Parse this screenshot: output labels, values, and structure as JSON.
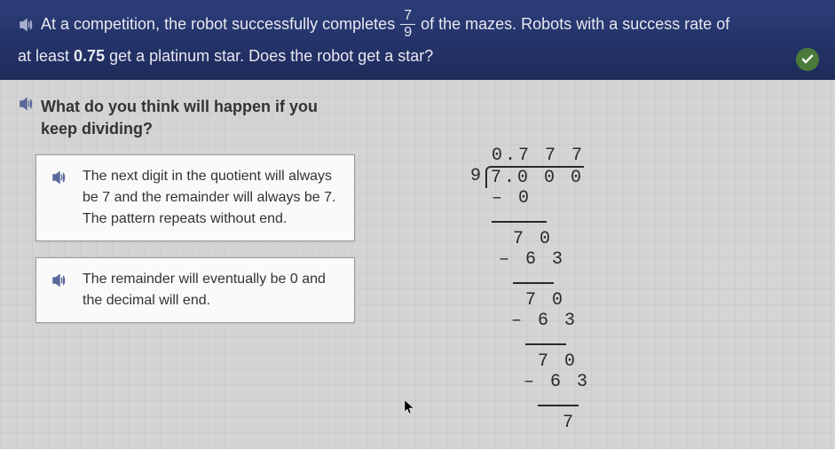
{
  "header": {
    "question_part1": "At a competition, the robot successfully completes",
    "fraction_num": "7",
    "fraction_den": "9",
    "question_part2": "of the mazes. Robots with a success rate of",
    "question_line2_a": "at least",
    "threshold": "0.75",
    "question_line2_b": "get a platinum star. Does the robot get a star?"
  },
  "prompt": {
    "line1": "What do you think will happen if you",
    "line2": "keep dividing?"
  },
  "options": [
    {
      "text": "The next digit in the quotient will always be 7 and the remainder will always be 7. The pattern repeats without end."
    },
    {
      "text": "The remainder will eventually be 0 and the decimal will end."
    }
  ],
  "division": {
    "quotient": "0.7 7 7",
    "divisor": "9",
    "dividend": "7.0 0 0",
    "steps": [
      {
        "sub": "– 0",
        "sub_indent": 24,
        "line_indent": 24,
        "line_width": 62
      },
      {
        "bring": "7 0",
        "bring_indent": 48,
        "sub": "– 6 3",
        "sub_indent": 32,
        "line_indent": 48,
        "line_width": 46
      },
      {
        "bring": "7 0",
        "bring_indent": 62,
        "sub": "– 6 3",
        "sub_indent": 46,
        "line_indent": 62,
        "line_width": 46
      },
      {
        "bring": "7 0",
        "bring_indent": 76,
        "sub": "– 6 3",
        "sub_indent": 60,
        "line_indent": 76,
        "line_width": 46
      },
      {
        "bring": "7",
        "bring_indent": 104
      }
    ]
  },
  "colors": {
    "header_bg_top": "#2c3e7a",
    "header_bg_bottom": "#1e2a5a",
    "header_text": "#e8e8f0",
    "content_bg": "#d4d4d4",
    "card_bg": "#fafafa",
    "card_border": "#999999",
    "body_text": "#333333",
    "division_text": "#2a2a2a",
    "check_bg": "#4a7a3a"
  },
  "fonts": {
    "body": "Arial, sans-serif",
    "mono": "Courier New, monospace",
    "header_size": 18,
    "prompt_size": 18,
    "option_size": 16,
    "division_size": 20
  }
}
